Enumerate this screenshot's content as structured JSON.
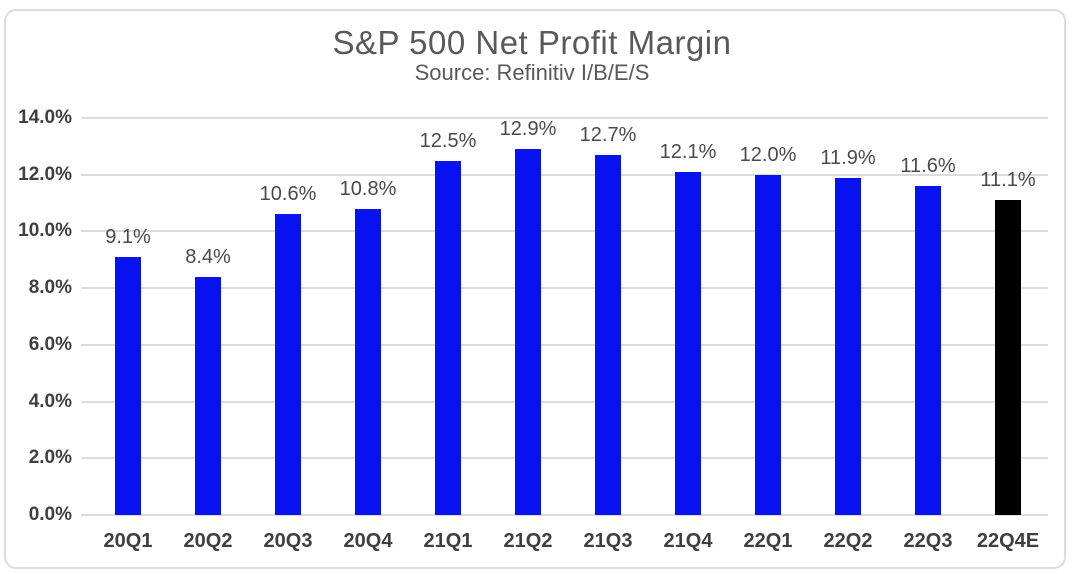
{
  "chart_data": {
    "type": "bar",
    "title": "S&P 500 Net Profit Margin",
    "subtitle": "Source: Refinitiv I/B/E/S",
    "categories": [
      "20Q1",
      "20Q2",
      "20Q3",
      "20Q4",
      "21Q1",
      "21Q2",
      "21Q3",
      "21Q4",
      "22Q1",
      "22Q2",
      "22Q3",
      "22Q4E"
    ],
    "values": [
      9.1,
      8.4,
      10.6,
      10.8,
      12.5,
      12.9,
      12.7,
      12.1,
      12.0,
      11.9,
      11.6,
      11.1
    ],
    "data_labels": [
      "9.1%",
      "8.4%",
      "10.6%",
      "10.8%",
      "12.5%",
      "12.9%",
      "12.7%",
      "12.1%",
      "12.0%",
      "11.9%",
      "11.6%",
      "11.1%"
    ],
    "highlight_index": 11,
    "xlabel": "",
    "ylabel": "",
    "ylim": [
      0,
      14
    ],
    "yticks": [
      0,
      2,
      4,
      6,
      8,
      10,
      12,
      14
    ],
    "ytick_labels": [
      "0.0%",
      "2.0%",
      "4.0%",
      "6.0%",
      "8.0%",
      "10.0%",
      "12.0%",
      "14.0%"
    ],
    "grid": true,
    "legend": "none",
    "colors": {
      "bar": "#0712f0",
      "highlight_bar": "#000000",
      "gridline": "#dcdcdc",
      "axis_text": "#3f3f3f",
      "data_label_text": "#4a4a4a",
      "title_text": "#595959",
      "border": "#dcdcdc"
    }
  }
}
